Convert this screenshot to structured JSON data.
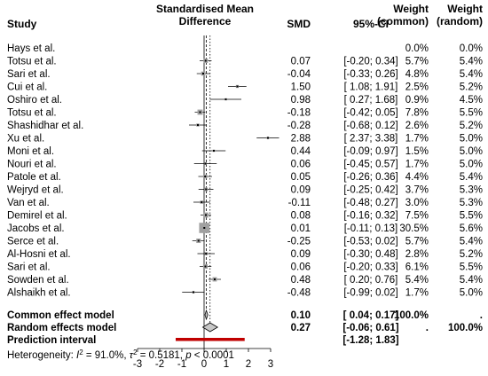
{
  "chart_data": {
    "type": "forest",
    "headers": {
      "study": "Study",
      "smd_title_line1": "Standardised Mean",
      "smd_title_line2": "Difference",
      "smd": "SMD",
      "ci": "95%-CI",
      "w_common_line1": "Weight",
      "w_common_line2": "(common)",
      "w_random_line1": "Weight",
      "w_random_line2": "(random)"
    },
    "xlim": [
      -3,
      3
    ],
    "xticks": [
      "-3",
      "-2",
      "-1",
      "0",
      "1",
      "2",
      "3"
    ],
    "common_effect_line": 0.1,
    "random_effect_line": 0.27,
    "studies": [
      {
        "name": "Hays et al.",
        "smd": null,
        "lo": null,
        "hi": null,
        "smd_label": "",
        "ci_label": "",
        "w_common": "0.0%",
        "w_random": "0.0%"
      },
      {
        "name": "Totsu et al.",
        "smd": 0.07,
        "lo": -0.2,
        "hi": 0.34,
        "smd_label": "0.07",
        "ci_label": "[-0.20; 0.34]",
        "w_common": "5.7%",
        "w_random": "5.4%"
      },
      {
        "name": "Sari et al.",
        "smd": -0.04,
        "lo": -0.33,
        "hi": 0.26,
        "smd_label": "-0.04",
        "ci_label": "[-0.33; 0.26]",
        "w_common": "4.8%",
        "w_random": "5.4%"
      },
      {
        "name": "Cui et al.",
        "smd": 1.5,
        "lo": 1.08,
        "hi": 1.91,
        "smd_label": "1.50",
        "ci_label": "[ 1.08; 1.91]",
        "w_common": "2.5%",
        "w_random": "5.2%"
      },
      {
        "name": "Oshiro et al.",
        "smd": 0.98,
        "lo": 0.27,
        "hi": 1.68,
        "smd_label": "0.98",
        "ci_label": "[ 0.27; 1.68]",
        "w_common": "0.9%",
        "w_random": "4.5%"
      },
      {
        "name": "Totsu et al.",
        "smd": -0.18,
        "lo": -0.42,
        "hi": 0.05,
        "smd_label": "-0.18",
        "ci_label": "[-0.42; 0.05]",
        "w_common": "7.8%",
        "w_random": "5.5%"
      },
      {
        "name": "Shashidhar et al.",
        "smd": -0.28,
        "lo": -0.68,
        "hi": 0.12,
        "smd_label": "-0.28",
        "ci_label": "[-0.68; 0.12]",
        "w_common": "2.6%",
        "w_random": "5.2%"
      },
      {
        "name": "Xu et al.",
        "smd": 2.88,
        "lo": 2.37,
        "hi": 3.38,
        "smd_label": "2.88",
        "ci_label": "[ 2.37; 3.38]",
        "w_common": "1.7%",
        "w_random": "5.0%"
      },
      {
        "name": "Moni et al.",
        "smd": 0.44,
        "lo": -0.09,
        "hi": 0.97,
        "smd_label": "0.44",
        "ci_label": "[-0.09; 0.97]",
        "w_common": "1.5%",
        "w_random": "5.0%"
      },
      {
        "name": "Nouri et al.",
        "smd": 0.06,
        "lo": -0.45,
        "hi": 0.57,
        "smd_label": "0.06",
        "ci_label": "[-0.45; 0.57]",
        "w_common": "1.7%",
        "w_random": "5.0%"
      },
      {
        "name": "Patole et al.",
        "smd": 0.05,
        "lo": -0.26,
        "hi": 0.36,
        "smd_label": "0.05",
        "ci_label": "[-0.26; 0.36]",
        "w_common": "4.4%",
        "w_random": "5.4%"
      },
      {
        "name": "Wejryd et al.",
        "smd": 0.09,
        "lo": -0.25,
        "hi": 0.42,
        "smd_label": "0.09",
        "ci_label": "[-0.25; 0.42]",
        "w_common": "3.7%",
        "w_random": "5.3%"
      },
      {
        "name": "Van et al.",
        "smd": -0.11,
        "lo": -0.48,
        "hi": 0.27,
        "smd_label": "-0.11",
        "ci_label": "[-0.48; 0.27]",
        "w_common": "3.0%",
        "w_random": "5.3%"
      },
      {
        "name": "Demirel et al.",
        "smd": 0.08,
        "lo": -0.16,
        "hi": 0.32,
        "smd_label": "0.08",
        "ci_label": "[-0.16; 0.32]",
        "w_common": "7.5%",
        "w_random": "5.5%"
      },
      {
        "name": "Jacobs et al.",
        "smd": 0.01,
        "lo": -0.11,
        "hi": 0.13,
        "smd_label": "0.01",
        "ci_label": "[-0.11; 0.13]",
        "w_common": "30.5%",
        "w_random": "5.6%"
      },
      {
        "name": "Serce et al.",
        "smd": -0.25,
        "lo": -0.53,
        "hi": 0.02,
        "smd_label": "-0.25",
        "ci_label": "[-0.53; 0.02]",
        "w_common": "5.7%",
        "w_random": "5.4%"
      },
      {
        "name": "Al-Hosni et al.",
        "smd": 0.09,
        "lo": -0.3,
        "hi": 0.48,
        "smd_label": "0.09",
        "ci_label": "[-0.30; 0.48]",
        "w_common": "2.8%",
        "w_random": "5.2%"
      },
      {
        "name": "Sari et al.",
        "smd": 0.06,
        "lo": -0.2,
        "hi": 0.33,
        "smd_label": "0.06",
        "ci_label": "[-0.20; 0.33]",
        "w_common": "6.1%",
        "w_random": "5.5%"
      },
      {
        "name": "Sowden et al.",
        "smd": 0.48,
        "lo": 0.2,
        "hi": 0.76,
        "smd_label": "0.48",
        "ci_label": "[ 0.20; 0.76]",
        "w_common": "5.4%",
        "w_random": "5.4%"
      },
      {
        "name": "Alshaikh et al.",
        "smd": -0.48,
        "lo": -0.99,
        "hi": 0.02,
        "smd_label": "-0.48",
        "ci_label": "[-0.99; 0.02]",
        "w_common": "1.7%",
        "w_random": "5.0%"
      }
    ],
    "common_model": {
      "label": "Common effect model",
      "smd": 0.1,
      "lo": 0.04,
      "hi": 0.17,
      "smd_label": "0.10",
      "ci_label": "[ 0.04; 0.17]",
      "w_common": "100.0%",
      "w_random": "."
    },
    "random_model": {
      "label": "Random effects model",
      "smd": 0.27,
      "lo": -0.06,
      "hi": 0.61,
      "smd_label": "0.27",
      "ci_label": "[-0.06; 0.61]",
      "w_common": ".",
      "w_random": "100.0%"
    },
    "prediction_interval": {
      "label": "Prediction interval",
      "lo": -1.28,
      "hi": 1.83,
      "ci_label": "[-1.28; 1.83]",
      "color": "#c00000"
    },
    "heterogeneity": {
      "prefix": "Heterogeneity: ",
      "i2_sym": "I",
      "i2_value": " = 91.0%, ",
      "tau_sym": "τ",
      "tau_value": " = 0.5181, ",
      "p_sym": "p",
      "p_value": " < 0.0001"
    },
    "colors": {
      "box": "#a0a0a0",
      "line": "#000000",
      "pred": "#c00000",
      "diamond_fill": "#c8c8c8"
    }
  }
}
